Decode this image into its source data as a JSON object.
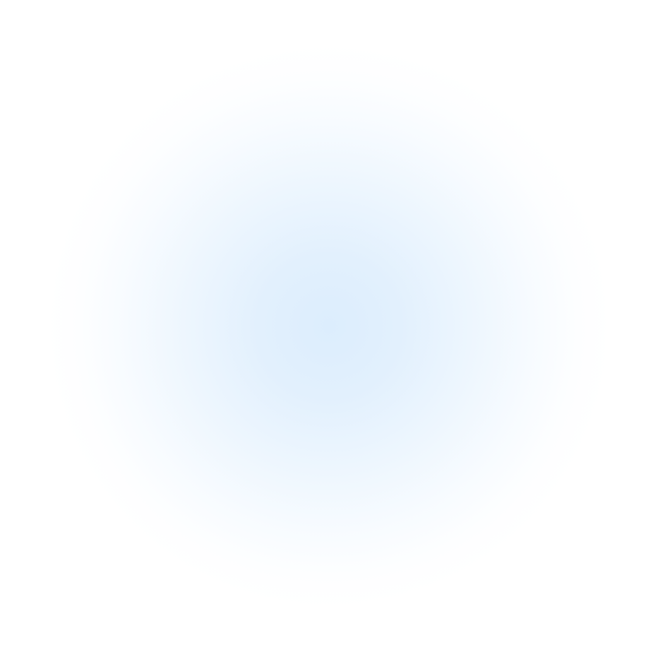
{
  "background": {
    "base_color": "#ffffff",
    "glow_color": "#dcedfd",
    "style": "radial-gradient"
  }
}
